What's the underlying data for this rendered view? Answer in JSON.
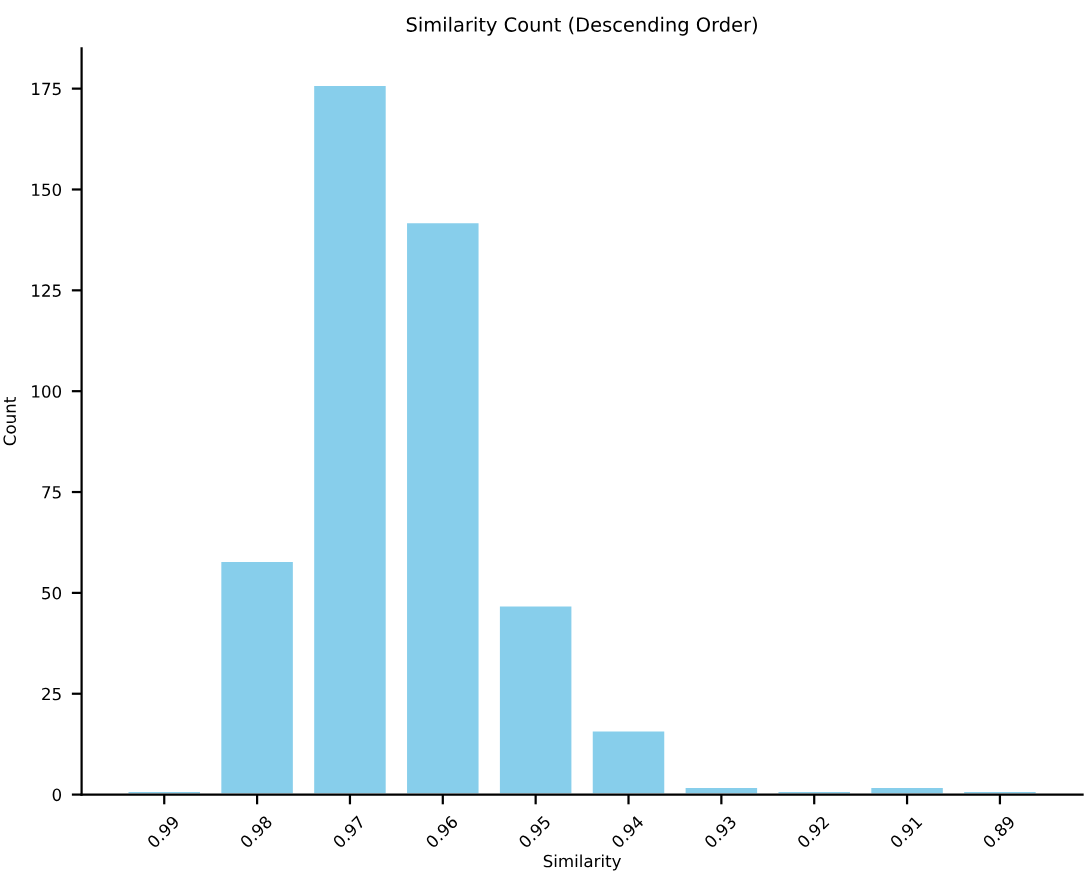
{
  "chart_data": {
    "type": "bar",
    "title": "Similarity Count (Descending Order)",
    "xlabel": "Similarity",
    "ylabel": "Count",
    "categories": [
      "0.99",
      "0.98",
      "0.97",
      "0.96",
      "0.95",
      "0.94",
      "0.93",
      "0.92",
      "0.91",
      "0.89"
    ],
    "values": [
      1,
      58,
      176,
      142,
      47,
      16,
      2,
      1,
      2,
      1
    ],
    "color": "#87ceeb",
    "ylim": [
      0,
      185
    ],
    "yticks": [
      0,
      25,
      50,
      75,
      100,
      125,
      150,
      175
    ],
    "grid": false
  }
}
